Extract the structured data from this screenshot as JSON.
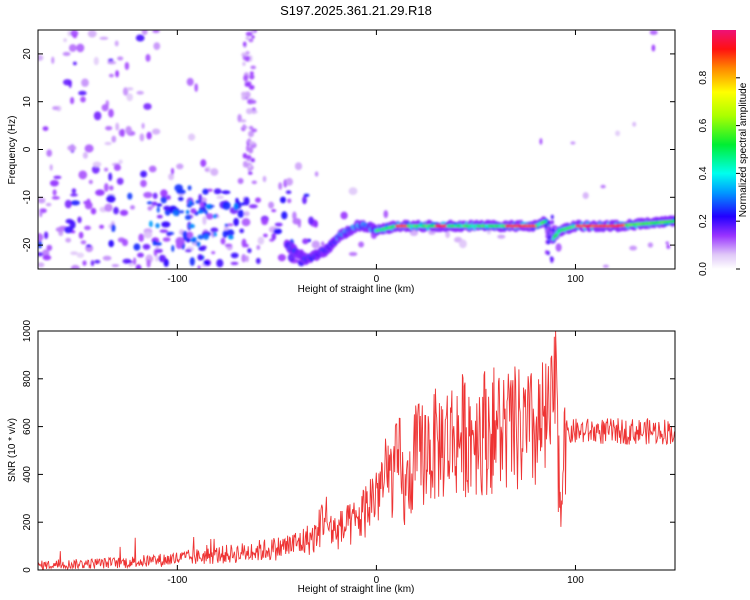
{
  "title": "S197.2025.361.21.29.R18",
  "chart_data": [
    {
      "type": "heatmap",
      "name": "spectrogram",
      "xlabel": "Height of straight line (km)",
      "ylabel": "Frequency (Hz)",
      "xlim": [
        -170,
        150
      ],
      "ylim": [
        -25,
        25
      ],
      "xticks": [
        -100,
        0,
        100
      ],
      "yticks": [
        -20,
        -10,
        0,
        10,
        20
      ],
      "tone_track": {
        "description_points_x": [
          -75,
          -60,
          -45,
          -35,
          -25,
          -18,
          -10,
          -5,
          0,
          10,
          20,
          40,
          60,
          80,
          85,
          88,
          92,
          100,
          120,
          150
        ],
        "description_points_y": [
          -13,
          -17,
          -20,
          -23,
          -21,
          -18,
          -16,
          -16,
          -17,
          -16,
          -16,
          -16,
          -16,
          -16,
          -15,
          -19,
          -17,
          -16,
          -16,
          -15
        ]
      },
      "colorbar": {
        "label": "Normalized spectral amplitude",
        "ticks": [
          "0.0",
          "0.2",
          "0.4",
          "0.6",
          "0.8"
        ],
        "range": [
          0,
          1
        ]
      }
    },
    {
      "type": "line",
      "name": "snr",
      "xlabel": "Height of straight line (km)",
      "ylabel": "SNR (10 * v/v)",
      "xlim": [
        -170,
        150
      ],
      "ylim": [
        0,
        1000
      ],
      "xticks": [
        -100,
        0,
        100
      ],
      "yticks": [
        0,
        200,
        400,
        600,
        800,
        1000
      ],
      "color": "#ee3333",
      "series": [
        {
          "name": "SNR",
          "x": [
            -170,
            -150,
            -130,
            -110,
            -90,
            -70,
            -50,
            -40,
            -30,
            -26,
            -24,
            -20,
            -10,
            -5,
            0,
            5,
            10,
            12,
            14,
            20,
            30,
            40,
            50,
            60,
            70,
            80,
            88,
            90,
            92,
            93,
            94,
            95,
            100,
            110,
            120,
            130,
            140,
            150
          ],
          "y": [
            20,
            25,
            30,
            40,
            55,
            70,
            90,
            110,
            140,
            250,
            180,
            160,
            200,
            260,
            330,
            380,
            420,
            450,
            300,
            480,
            520,
            560,
            580,
            590,
            580,
            570,
            640,
            800,
            350,
            300,
            650,
            570,
            580,
            580,
            580,
            580,
            580,
            580
          ]
        }
      ]
    }
  ]
}
